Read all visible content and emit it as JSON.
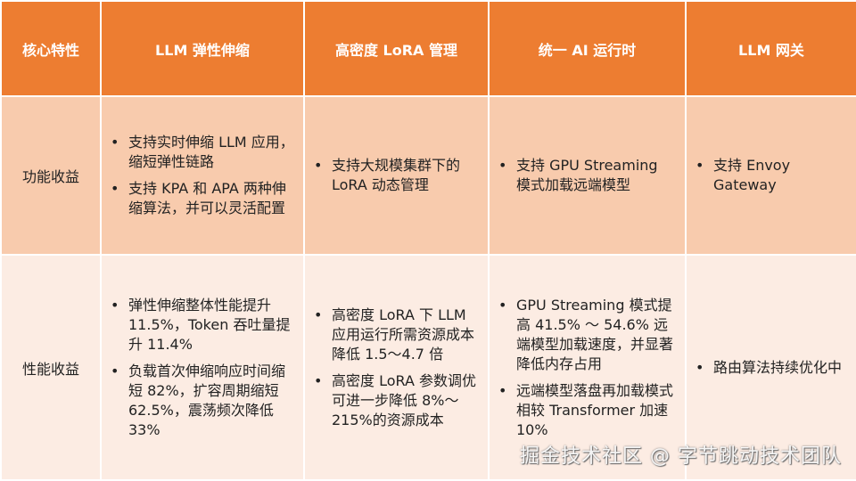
{
  "headers": [
    "核心特性",
    "LLM 弹性伸缩",
    "高密度 LoRA 管理",
    "统一 AI 运行时",
    "LLM 网关"
  ],
  "rows": [
    {
      "label": "功能收益",
      "cells": [
        [
          "支持实时伸缩 LLM 应用，缩短弹性链路",
          "支持 KPA 和 APA 两种伸缩算法，并可以灵活配置"
        ],
        [
          "支持大规模集群下的 LoRA 动态管理"
        ],
        [
          "支持 GPU Streaming 模式加载远端模型"
        ],
        [
          "支持 Envoy Gateway"
        ]
      ]
    },
    {
      "label": "性能收益",
      "cells": [
        [
          "弹性伸缩整体性能提升 11.5%，Token 吞吐量提升 11.4%",
          "负载首次伸缩响应时间缩短 82%，扩容周期缩短 62.5%，震荡频次降低 33%"
        ],
        [
          "高密度 LoRA 下 LLM 应用运行所需资源成本降低 1.5～4.7 倍",
          "高密度 LoRA 参数调优可进一步降低 8%～215%的资源成本"
        ],
        [
          "GPU Streaming 模式提高 41.5% ～ 54.6% 远端模型加载速度，并显著降低内存占用",
          "远端模型落盘再加载模式相较 Transformer 加速 10%"
        ],
        [
          "路由算法持续优化中"
        ]
      ]
    }
  ],
  "watermark": "掘金技术社区 @ 字节跳动技术团队",
  "colors": {
    "header": "#ED7D31",
    "row1": "#F8CBAD",
    "row2": "#FCECE3"
  }
}
